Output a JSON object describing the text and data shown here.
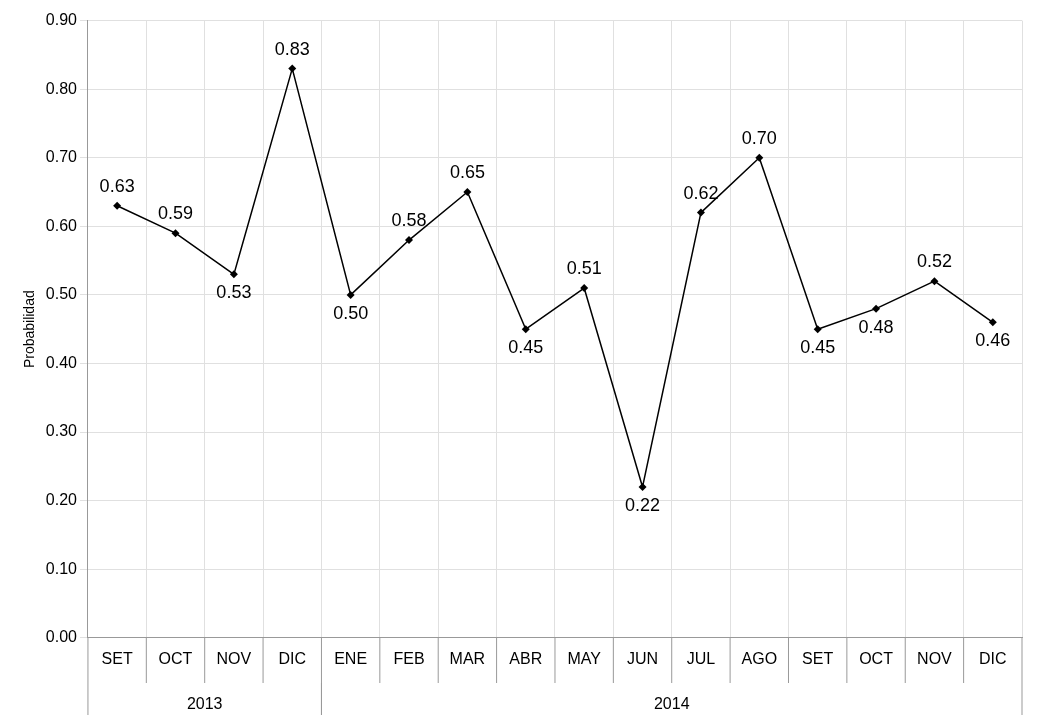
{
  "chart_data": {
    "type": "line",
    "ylabel": "Probabilidad",
    "categories": [
      "SET",
      "OCT",
      "NOV",
      "DIC",
      "ENE",
      "FEB",
      "MAR",
      "ABR",
      "MAY",
      "JUN",
      "JUL",
      "AGO",
      "SET",
      "OCT",
      "NOV",
      "DIC"
    ],
    "series": [
      {
        "color": "#000000",
        "values": [
          0.63,
          0.59,
          0.53,
          0.83,
          0.5,
          0.58,
          0.65,
          0.45,
          0.51,
          0.22,
          0.62,
          0.7,
          0.45,
          0.48,
          0.52,
          0.46
        ],
        "value_labels": [
          "0.63",
          "0.59",
          "0.53",
          "0.83",
          "0.50",
          "0.58",
          "0.65",
          "0.45",
          "0.51",
          "0.22",
          "0.62",
          "0.70",
          "0.45",
          "0.48",
          "0.52",
          "0.46"
        ]
      }
    ],
    "ylim": [
      0,
      0.9
    ],
    "yticks": [
      {
        "value": 0,
        "label": "0.00"
      },
      {
        "value": 0.1,
        "label": "0.10"
      },
      {
        "value": 0.2,
        "label": "0.20"
      },
      {
        "value": 0.3,
        "label": "0.30"
      },
      {
        "value": 0.4,
        "label": "0.40"
      },
      {
        "value": 0.5,
        "label": "0.50"
      },
      {
        "value": 0.6,
        "label": "0.60"
      },
      {
        "value": 0.7,
        "label": "0.70"
      },
      {
        "value": 0.8,
        "label": "0.80"
      },
      {
        "value": 0.9,
        "label": "0.90"
      }
    ],
    "annotations": [
      "2013",
      "2014"
    ],
    "grid": true,
    "marker": "diamond",
    "line_style": "solid",
    "legend": false
  }
}
